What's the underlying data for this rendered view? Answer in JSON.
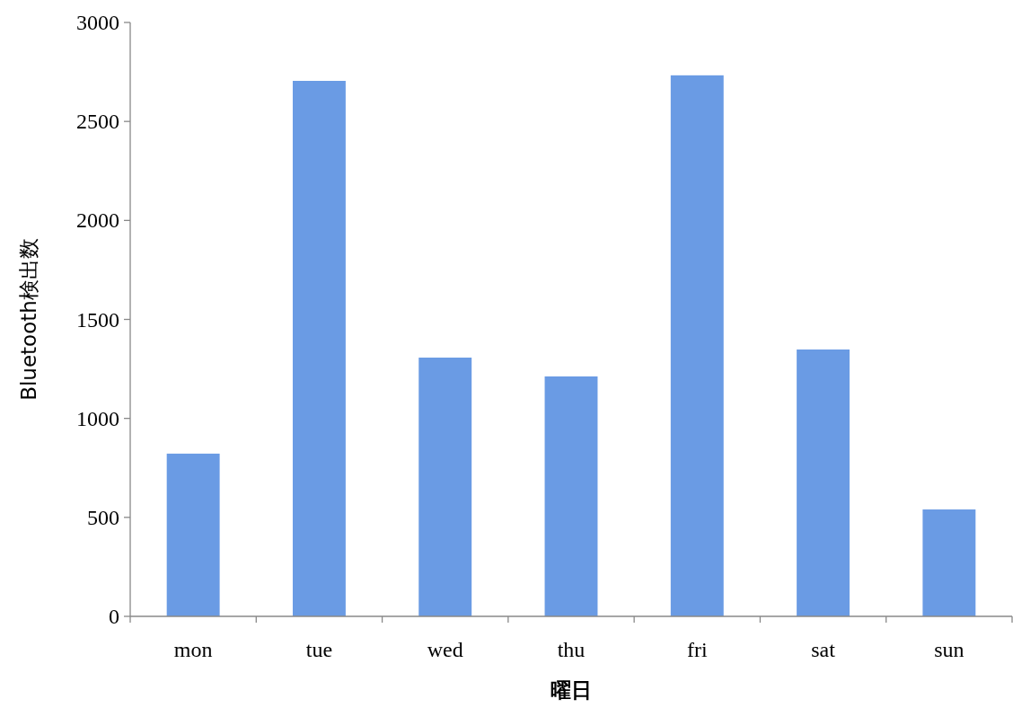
{
  "chart_data": {
    "type": "bar",
    "xlabel": "曜日",
    "ylabel": "Bluetooth検出数",
    "categories": [
      "mon",
      "tue",
      "wed",
      "thu",
      "fri",
      "sat",
      "sun"
    ],
    "values": [
      822,
      2705,
      1307,
      1212,
      2733,
      1348,
      540
    ],
    "color": "#6a9be4",
    "ylim": [
      0,
      3000
    ],
    "yticks": [
      0,
      500,
      1000,
      1500,
      2000,
      2500,
      3000
    ],
    "grid": false
  }
}
